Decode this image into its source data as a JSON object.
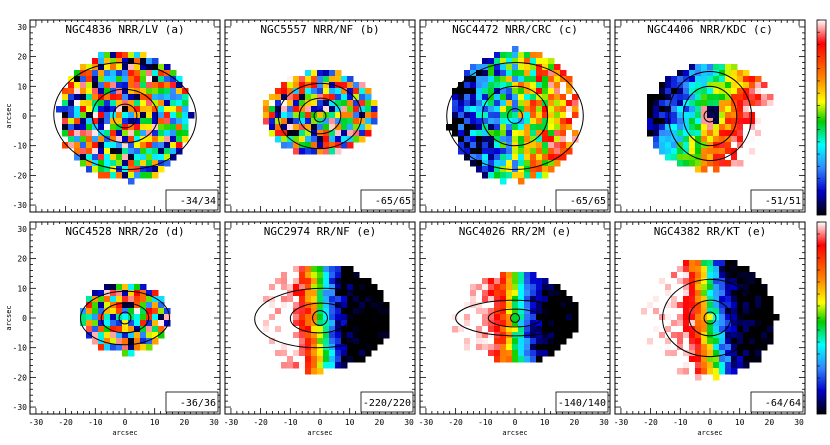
{
  "figure": {
    "axis_label": "arcsec",
    "x_ticks": [
      "-30",
      "-20",
      "-10",
      "0",
      "10",
      "20",
      "30"
    ],
    "y_ticks": [
      "-30",
      "-20",
      "-10",
      "0",
      "10",
      "20",
      "30"
    ],
    "colorbar": {
      "colors": [
        "#ffffff",
        "#ff0000",
        "#ff8800",
        "#ffff00",
        "#00cc00",
        "#00ffff",
        "#3388ff",
        "#0000cc",
        "#000000"
      ]
    },
    "panels": [
      {
        "title": "NGC4836 NRR/LV (a)",
        "range": "-34/34",
        "pattern": "noise"
      },
      {
        "title": "NGC5557 NRR/NF (b)",
        "range": "-65/65",
        "pattern": "noise"
      },
      {
        "title": "NGC4472 NRR/CRC (c)",
        "range": "-65/65",
        "pattern": "noise_gradient"
      },
      {
        "title": "NGC4406 NRR/KDC (c)",
        "range": "-51/51",
        "pattern": "kdc"
      },
      {
        "title": "NGC4528 NRR/2σ (d)",
        "range": "-36/36",
        "pattern": "noise"
      },
      {
        "title": "NGC2974 RR/NF (e)",
        "range": "-220/220",
        "pattern": "rotation"
      },
      {
        "title": "NGC4026 RR/2M (e)",
        "range": "-140/140",
        "pattern": "rotation"
      },
      {
        "title": "NGC4382 RR/KT (e)",
        "range": "-64/64",
        "pattern": "rotation"
      }
    ]
  }
}
